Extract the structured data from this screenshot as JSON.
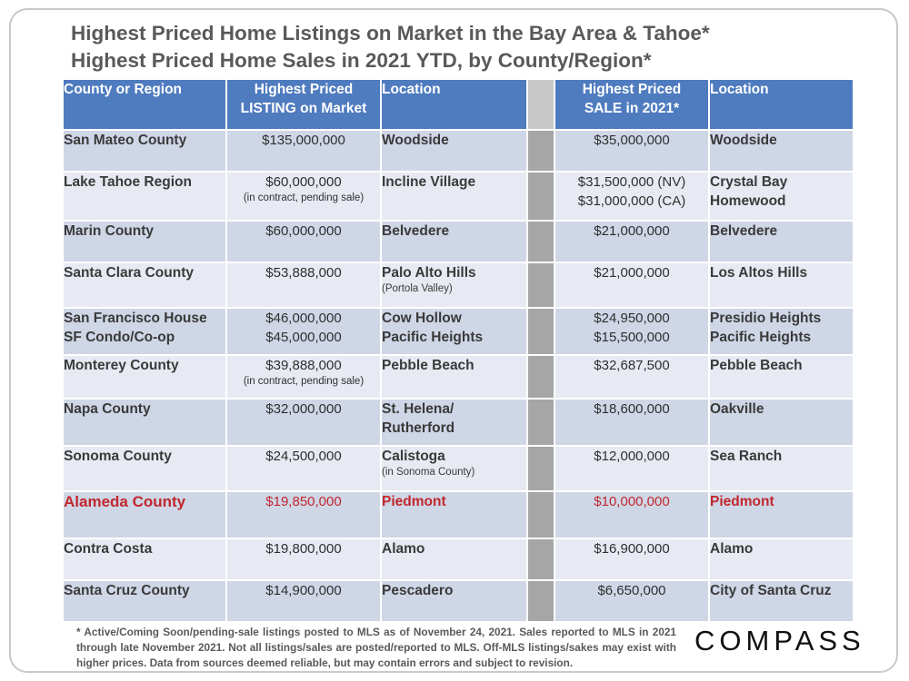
{
  "title": {
    "line1": "Highest Priced Home Listings on Market in the Bay Area & Tahoe*",
    "line2": "Highest Priced Home Sales in 2021 YTD, by County/Region*"
  },
  "columns": {
    "region": "County or Region",
    "listing_line1": "Highest Priced",
    "listing_line2": "LISTING on Market",
    "listing_location": "Location",
    "sale_line1": "Highest Priced",
    "sale_line2": "SALE in 2021*",
    "sale_location": "Location"
  },
  "rows": [
    {
      "region": [
        "San Mateo County"
      ],
      "listing": [
        "$135,000,000"
      ],
      "listing_note": "",
      "listing_location": [
        "Woodside"
      ],
      "listing_location_note": "",
      "sale": [
        "$35,000,000"
      ],
      "sale_location": [
        "Woodside"
      ]
    },
    {
      "region": [
        "Lake Tahoe Region"
      ],
      "listing": [
        "$60,000,000"
      ],
      "listing_note": "(in contract, pending sale)",
      "listing_location": [
        "Incline Village"
      ],
      "listing_location_note": "",
      "sale": [
        "$31,500,000 (NV)",
        "$31,000,000 (CA)"
      ],
      "sale_location": [
        "Crystal Bay",
        "Homewood"
      ]
    },
    {
      "region": [
        "Marin County"
      ],
      "listing": [
        "$60,000,000"
      ],
      "listing_note": "",
      "listing_location": [
        "Belvedere"
      ],
      "listing_location_note": "",
      "sale": [
        "$21,000,000"
      ],
      "sale_location": [
        "Belvedere"
      ]
    },
    {
      "region": [
        "Santa Clara County"
      ],
      "listing": [
        "$53,888,000"
      ],
      "listing_note": "",
      "listing_location": [
        "Palo Alto Hills"
      ],
      "listing_location_note": "(Portola Valley)",
      "sale": [
        "$21,000,000"
      ],
      "sale_location": [
        "Los Altos Hills"
      ]
    },
    {
      "region": [
        "San Francisco House",
        "SF Condo/Co-op"
      ],
      "listing": [
        "$46,000,000",
        "$45,000,000"
      ],
      "listing_note": "",
      "listing_location": [
        "Cow Hollow",
        "Pacific Heights"
      ],
      "listing_location_note": "",
      "sale": [
        "$24,950,000",
        "$15,500,000"
      ],
      "sale_location": [
        "Presidio Heights",
        "Pacific Heights"
      ]
    },
    {
      "region": [
        "Monterey County"
      ],
      "listing": [
        "$39,888,000"
      ],
      "listing_note": "(in contract, pending sale)",
      "listing_location": [
        "Pebble Beach"
      ],
      "listing_location_note": "",
      "sale": [
        "$32,687,500"
      ],
      "sale_location": [
        "Pebble Beach"
      ]
    },
    {
      "region": [
        "Napa County"
      ],
      "listing": [
        "$32,000,000"
      ],
      "listing_note": "",
      "listing_location": [
        "St. Helena/",
        "Rutherford"
      ],
      "listing_location_note": "",
      "sale": [
        "$18,600,000"
      ],
      "sale_location": [
        "Oakville"
      ]
    },
    {
      "region": [
        "Sonoma County"
      ],
      "listing": [
        "$24,500,000"
      ],
      "listing_note": "",
      "listing_location": [
        "Calistoga"
      ],
      "listing_location_note": "(in Sonoma County)",
      "sale": [
        "$12,000,000"
      ],
      "sale_location": [
        "Sea Ranch"
      ]
    },
    {
      "region": [
        "Alameda County"
      ],
      "listing": [
        "$19,850,000"
      ],
      "listing_note": "",
      "listing_location": [
        "Piedmont"
      ],
      "listing_location_note": "",
      "sale": [
        "$10,000,000"
      ],
      "sale_location": [
        "Piedmont"
      ],
      "highlight": true
    },
    {
      "region": [
        "Contra Costa"
      ],
      "listing": [
        "$19,800,000"
      ],
      "listing_note": "",
      "listing_location": [
        "Alamo"
      ],
      "listing_location_note": "",
      "sale": [
        "$16,900,000"
      ],
      "sale_location": [
        "Alamo"
      ]
    },
    {
      "region": [
        "Santa Cruz County"
      ],
      "listing": [
        "$14,900,000"
      ],
      "listing_note": "",
      "listing_location": [
        "Pescadero"
      ],
      "listing_location_note": "",
      "sale": [
        "$6,650,000"
      ],
      "sale_location": [
        "City of Santa Cruz"
      ]
    }
  ],
  "footnote": "* Active/Coming Soon/pending-sale listings posted to MLS as of November 24, 2021. Sales reported to MLS in 2021 through late November 2021. Not all listings/sales are posted/reported to MLS. Off-MLS listings/sakes may exist with higher prices. Data from sources deemed reliable, but may contain errors and subject to revision.",
  "logo": "COMPASS",
  "colors": {
    "header": "#4f7bbf",
    "highlight": "#c0272d"
  }
}
